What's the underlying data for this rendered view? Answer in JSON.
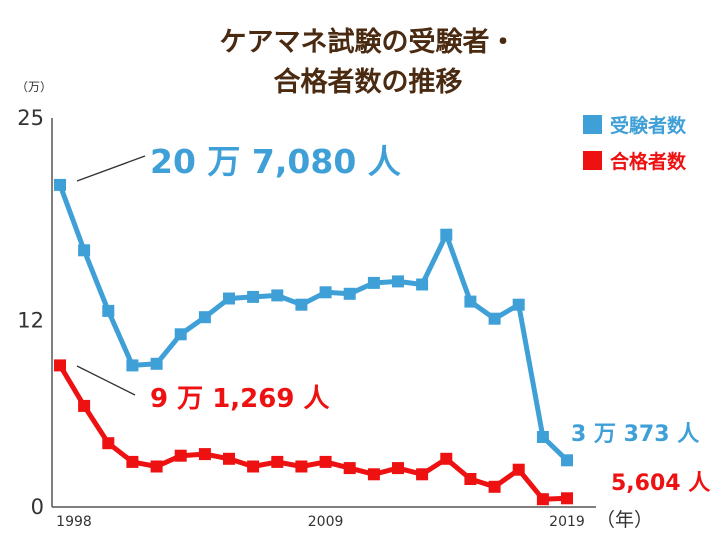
{
  "chart_data": {
    "type": "line",
    "title_line1": "ケアマネ試験の受験者・",
    "title_line2": "合格者数の推移",
    "y_unit": "（万）",
    "x_unit": "（年）",
    "ylim": [
      0,
      25
    ],
    "yticks": [
      {
        "value": 25,
        "label": "25"
      },
      {
        "value": 12,
        "label": "12"
      },
      {
        "value": 0,
        "label": "0"
      }
    ],
    "xlim": [
      1998,
      2019
    ],
    "xticks": [
      {
        "value": 1998,
        "label": "1998"
      },
      {
        "value": 2009,
        "label": "2009"
      },
      {
        "value": 2019,
        "label": "2019"
      }
    ],
    "x": [
      1998,
      1999,
      2000,
      2001,
      2002,
      2003,
      2004,
      2005,
      2006,
      2007,
      2008,
      2009,
      2010,
      2011,
      2012,
      2013,
      2014,
      2015,
      2016,
      2017,
      2018,
      2019
    ],
    "series": [
      {
        "name": "受験者数",
        "color": "#3fa0d8",
        "values": [
          20.7,
          16.5,
          12.6,
          9.1,
          9.2,
          11.1,
          12.2,
          13.4,
          13.5,
          13.6,
          13.0,
          13.8,
          13.7,
          14.4,
          14.5,
          14.3,
          17.5,
          13.2,
          12.1,
          13.0,
          4.5,
          3.0
        ]
      },
      {
        "name": "合格者数",
        "color": "#ee1111",
        "values": [
          9.1,
          6.5,
          4.1,
          2.9,
          2.6,
          3.3,
          3.4,
          3.1,
          2.6,
          2.9,
          2.6,
          2.9,
          2.5,
          2.1,
          2.5,
          2.1,
          3.1,
          1.8,
          1.3,
          2.4,
          0.5,
          0.56
        ]
      }
    ],
    "annotations": [
      {
        "key": "start_examinees",
        "text": "20 万 7,080 人"
      },
      {
        "key": "start_passers",
        "text": "9 万 1,269 人"
      },
      {
        "key": "end_examinees",
        "text": "3 万 373 人"
      },
      {
        "key": "end_passers",
        "text": "5,604 人"
      }
    ],
    "legend_position": "top-right"
  }
}
